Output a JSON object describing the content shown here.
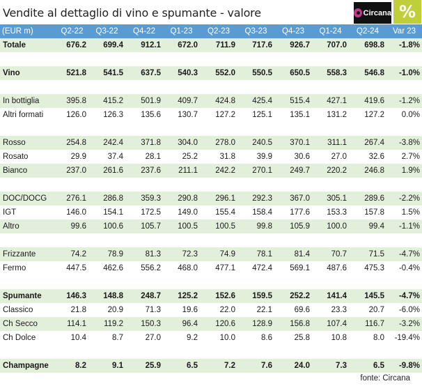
{
  "title": "Vendite al dettaglio di vino e spumante - valore",
  "logo": {
    "text": "Circana",
    "icon": "circana-logo-icon",
    "badge_icon": "percent-icon",
    "badge_color": "#bfcf3a"
  },
  "source": "fonte: Circana",
  "colors": {
    "header": "#5b9bd5",
    "band": "#e2efda"
  },
  "chart_data": {
    "type": "table",
    "title": "Vendite al dettaglio di vino e spumante - valore",
    "columns": [
      "(EUR m)",
      "Q2-22",
      "Q3-22",
      "Q4-22",
      "Q1-23",
      "Q2-23",
      "Q3-23",
      "Q4-23",
      "Q1-24",
      "Q2-24",
      "Var 23"
    ],
    "rows": [
      {
        "label": "Totale",
        "values": [
          "676.2",
          "699.4",
          "912.1",
          "672.0",
          "711.9",
          "717.6",
          "926.7",
          "707.0",
          "698.8",
          "-1.8%"
        ],
        "bold": true,
        "band": "green"
      },
      {
        "label": "",
        "values": [
          "",
          "",
          "",
          "",
          "",
          "",
          "",
          "",
          "",
          ""
        ],
        "band": "white"
      },
      {
        "label": "Vino",
        "values": [
          "521.8",
          "541.5",
          "637.5",
          "540.3",
          "552.0",
          "550.5",
          "650.5",
          "558.3",
          "546.8",
          "-1.0%"
        ],
        "bold": true,
        "band": "green"
      },
      {
        "label": "",
        "values": [
          "",
          "",
          "",
          "",
          "",
          "",
          "",
          "",
          "",
          ""
        ],
        "band": "white"
      },
      {
        "label": "In bottiglia",
        "values": [
          "395.8",
          "415.2",
          "501.9",
          "409.7",
          "424.8",
          "425.4",
          "515.4",
          "427.1",
          "419.6",
          "-1.2%"
        ],
        "band": "green"
      },
      {
        "label": "Altri formati",
        "values": [
          "126.0",
          "126.3",
          "135.6",
          "130.7",
          "127.2",
          "125.1",
          "135.1",
          "131.2",
          "127.2",
          "0.0%"
        ],
        "band": "white"
      },
      {
        "label": "",
        "values": [
          "",
          "",
          "",
          "",
          "",
          "",
          "",
          "",
          "",
          ""
        ],
        "band": "white"
      },
      {
        "label": "Rosso",
        "values": [
          "254.8",
          "242.4",
          "371.8",
          "304.0",
          "278.0",
          "240.5",
          "370.1",
          "311.1",
          "267.4",
          "-3.8%"
        ],
        "band": "green"
      },
      {
        "label": "Rosato",
        "values": [
          "29.9",
          "37.4",
          "28.1",
          "25.2",
          "31.8",
          "39.9",
          "30.6",
          "27.0",
          "32.6",
          "2.7%"
        ],
        "band": "white"
      },
      {
        "label": "Bianco",
        "values": [
          "237.0",
          "261.6",
          "237.6",
          "211.1",
          "242.2",
          "270.1",
          "249.7",
          "220.2",
          "246.8",
          "1.9%"
        ],
        "band": "green"
      },
      {
        "label": "",
        "values": [
          "",
          "",
          "",
          "",
          "",
          "",
          "",
          "",
          "",
          ""
        ],
        "band": "white"
      },
      {
        "label": "DOC/DOCG",
        "values": [
          "276.1",
          "286.8",
          "359.3",
          "290.8",
          "296.1",
          "292.3",
          "367.0",
          "305.1",
          "289.6",
          "-2.2%"
        ],
        "band": "green"
      },
      {
        "label": "IGT",
        "values": [
          "146.0",
          "154.1",
          "172.5",
          "149.0",
          "155.4",
          "158.4",
          "177.6",
          "153.3",
          "157.8",
          "1.5%"
        ],
        "band": "white"
      },
      {
        "label": "Altro",
        "values": [
          "99.6",
          "100.6",
          "105.7",
          "100.5",
          "100.5",
          "99.8",
          "105.9",
          "100.0",
          "99.4",
          "-1.1%"
        ],
        "band": "green"
      },
      {
        "label": "",
        "values": [
          "",
          "",
          "",
          "",
          "",
          "",
          "",
          "",
          "",
          ""
        ],
        "band": "white"
      },
      {
        "label": "Frizzante",
        "values": [
          "74.2",
          "78.9",
          "81.3",
          "72.3",
          "74.9",
          "78.1",
          "81.4",
          "70.7",
          "71.5",
          "-4.7%"
        ],
        "band": "green"
      },
      {
        "label": "Fermo",
        "values": [
          "447.5",
          "462.6",
          "556.2",
          "468.0",
          "477.1",
          "472.4",
          "569.1",
          "487.6",
          "475.3",
          "-0.4%"
        ],
        "band": "white"
      },
      {
        "label": "",
        "values": [
          "",
          "",
          "",
          "",
          "",
          "",
          "",
          "",
          "",
          ""
        ],
        "band": "white"
      },
      {
        "label": "Spumante",
        "values": [
          "146.3",
          "148.8",
          "248.7",
          "125.2",
          "152.6",
          "159.5",
          "252.2",
          "141.4",
          "145.5",
          "-4.7%"
        ],
        "bold": true,
        "band": "green"
      },
      {
        "label": "Classico",
        "values": [
          "21.8",
          "20.9",
          "71.3",
          "19.6",
          "22.0",
          "22.1",
          "69.6",
          "23.3",
          "20.7",
          "-6.0%"
        ],
        "band": "white"
      },
      {
        "label": "Ch Secco",
        "values": [
          "114.1",
          "119.2",
          "150.3",
          "96.4",
          "120.6",
          "128.9",
          "156.8",
          "107.4",
          "116.7",
          "-3.2%"
        ],
        "band": "green"
      },
      {
        "label": "Ch Dolce",
        "values": [
          "10.4",
          "8.7",
          "27.0",
          "9.2",
          "10.0",
          "8.6",
          "25.8",
          "10.8",
          "8.0",
          "-19.4%"
        ],
        "band": "white"
      },
      {
        "label": "",
        "values": [
          "",
          "",
          "",
          "",
          "",
          "",
          "",
          "",
          "",
          ""
        ],
        "band": "white"
      },
      {
        "label": "Champagne",
        "values": [
          "8.2",
          "9.1",
          "25.9",
          "6.5",
          "7.2",
          "7.6",
          "24.0",
          "7.3",
          "6.5",
          "-9.8%"
        ],
        "bold": true,
        "band": "green"
      }
    ]
  }
}
